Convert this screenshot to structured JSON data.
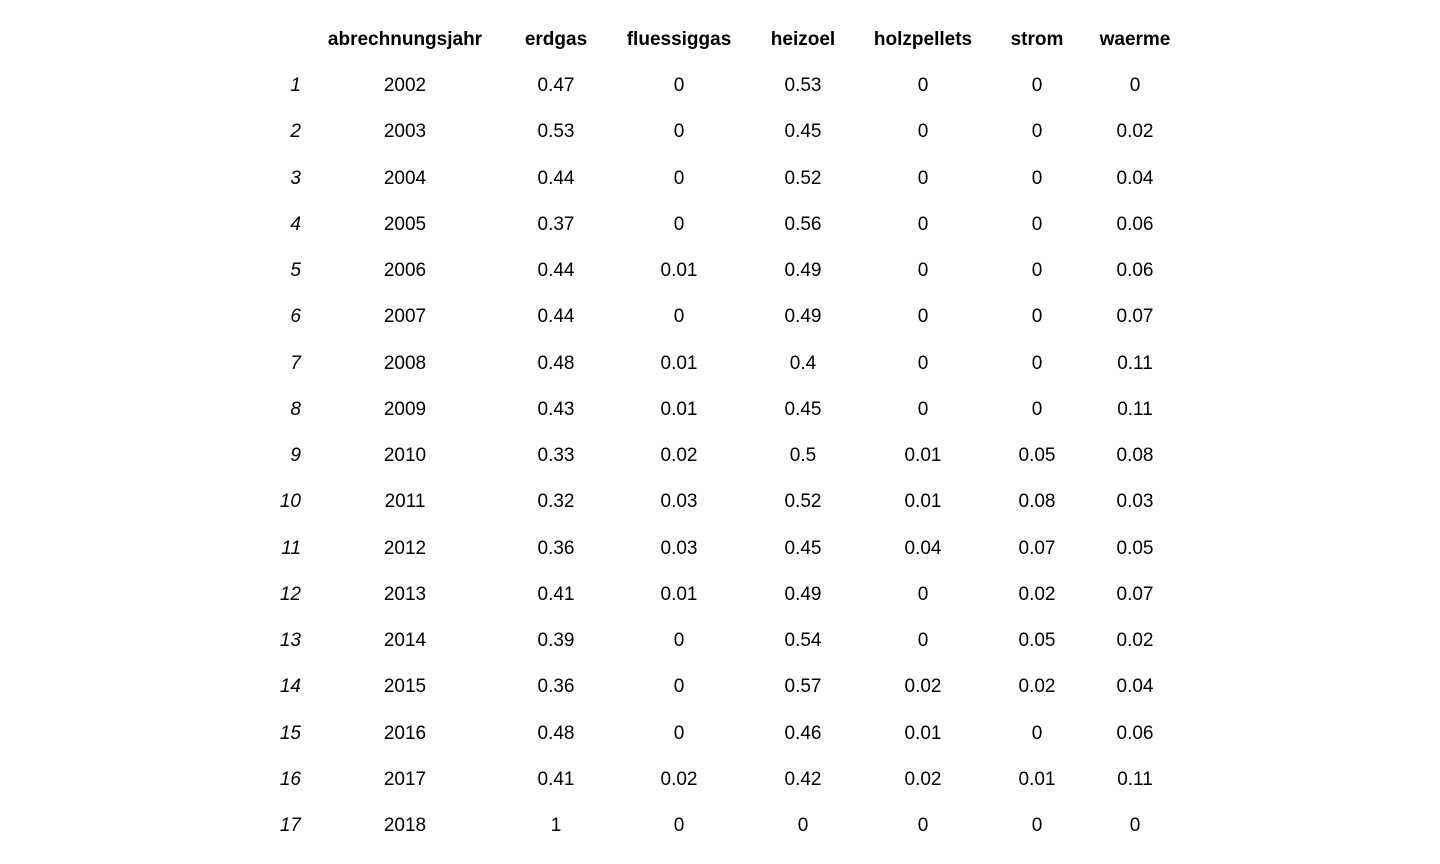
{
  "chart_data": {
    "type": "table",
    "columns": [
      "",
      "abrechnungsjahr",
      "erdgas",
      "fluessiggas",
      "heizoel",
      "holzpellets",
      "strom",
      "waerme"
    ],
    "rows": [
      [
        "1",
        "2002",
        "0.47",
        "0",
        "0.53",
        "0",
        "0",
        "0"
      ],
      [
        "2",
        "2003",
        "0.53",
        "0",
        "0.45",
        "0",
        "0",
        "0.02"
      ],
      [
        "3",
        "2004",
        "0.44",
        "0",
        "0.52",
        "0",
        "0",
        "0.04"
      ],
      [
        "4",
        "2005",
        "0.37",
        "0",
        "0.56",
        "0",
        "0",
        "0.06"
      ],
      [
        "5",
        "2006",
        "0.44",
        "0.01",
        "0.49",
        "0",
        "0",
        "0.06"
      ],
      [
        "6",
        "2007",
        "0.44",
        "0",
        "0.49",
        "0",
        "0",
        "0.07"
      ],
      [
        "7",
        "2008",
        "0.48",
        "0.01",
        "0.4",
        "0",
        "0",
        "0.11"
      ],
      [
        "8",
        "2009",
        "0.43",
        "0.01",
        "0.45",
        "0",
        "0",
        "0.11"
      ],
      [
        "9",
        "2010",
        "0.33",
        "0.02",
        "0.5",
        "0.01",
        "0.05",
        "0.08"
      ],
      [
        "10",
        "2011",
        "0.32",
        "0.03",
        "0.52",
        "0.01",
        "0.08",
        "0.03"
      ],
      [
        "11",
        "2012",
        "0.36",
        "0.03",
        "0.45",
        "0.04",
        "0.07",
        "0.05"
      ],
      [
        "12",
        "2013",
        "0.41",
        "0.01",
        "0.49",
        "0",
        "0.02",
        "0.07"
      ],
      [
        "13",
        "2014",
        "0.39",
        "0",
        "0.54",
        "0",
        "0.05",
        "0.02"
      ],
      [
        "14",
        "2015",
        "0.36",
        "0",
        "0.57",
        "0.02",
        "0.02",
        "0.04"
      ],
      [
        "15",
        "2016",
        "0.48",
        "0",
        "0.46",
        "0.01",
        "0",
        "0.06"
      ],
      [
        "16",
        "2017",
        "0.41",
        "0.02",
        "0.42",
        "0.02",
        "0.01",
        "0.11"
      ],
      [
        "17",
        "2018",
        "1",
        "0",
        "0",
        "0",
        "0",
        "0"
      ]
    ]
  }
}
